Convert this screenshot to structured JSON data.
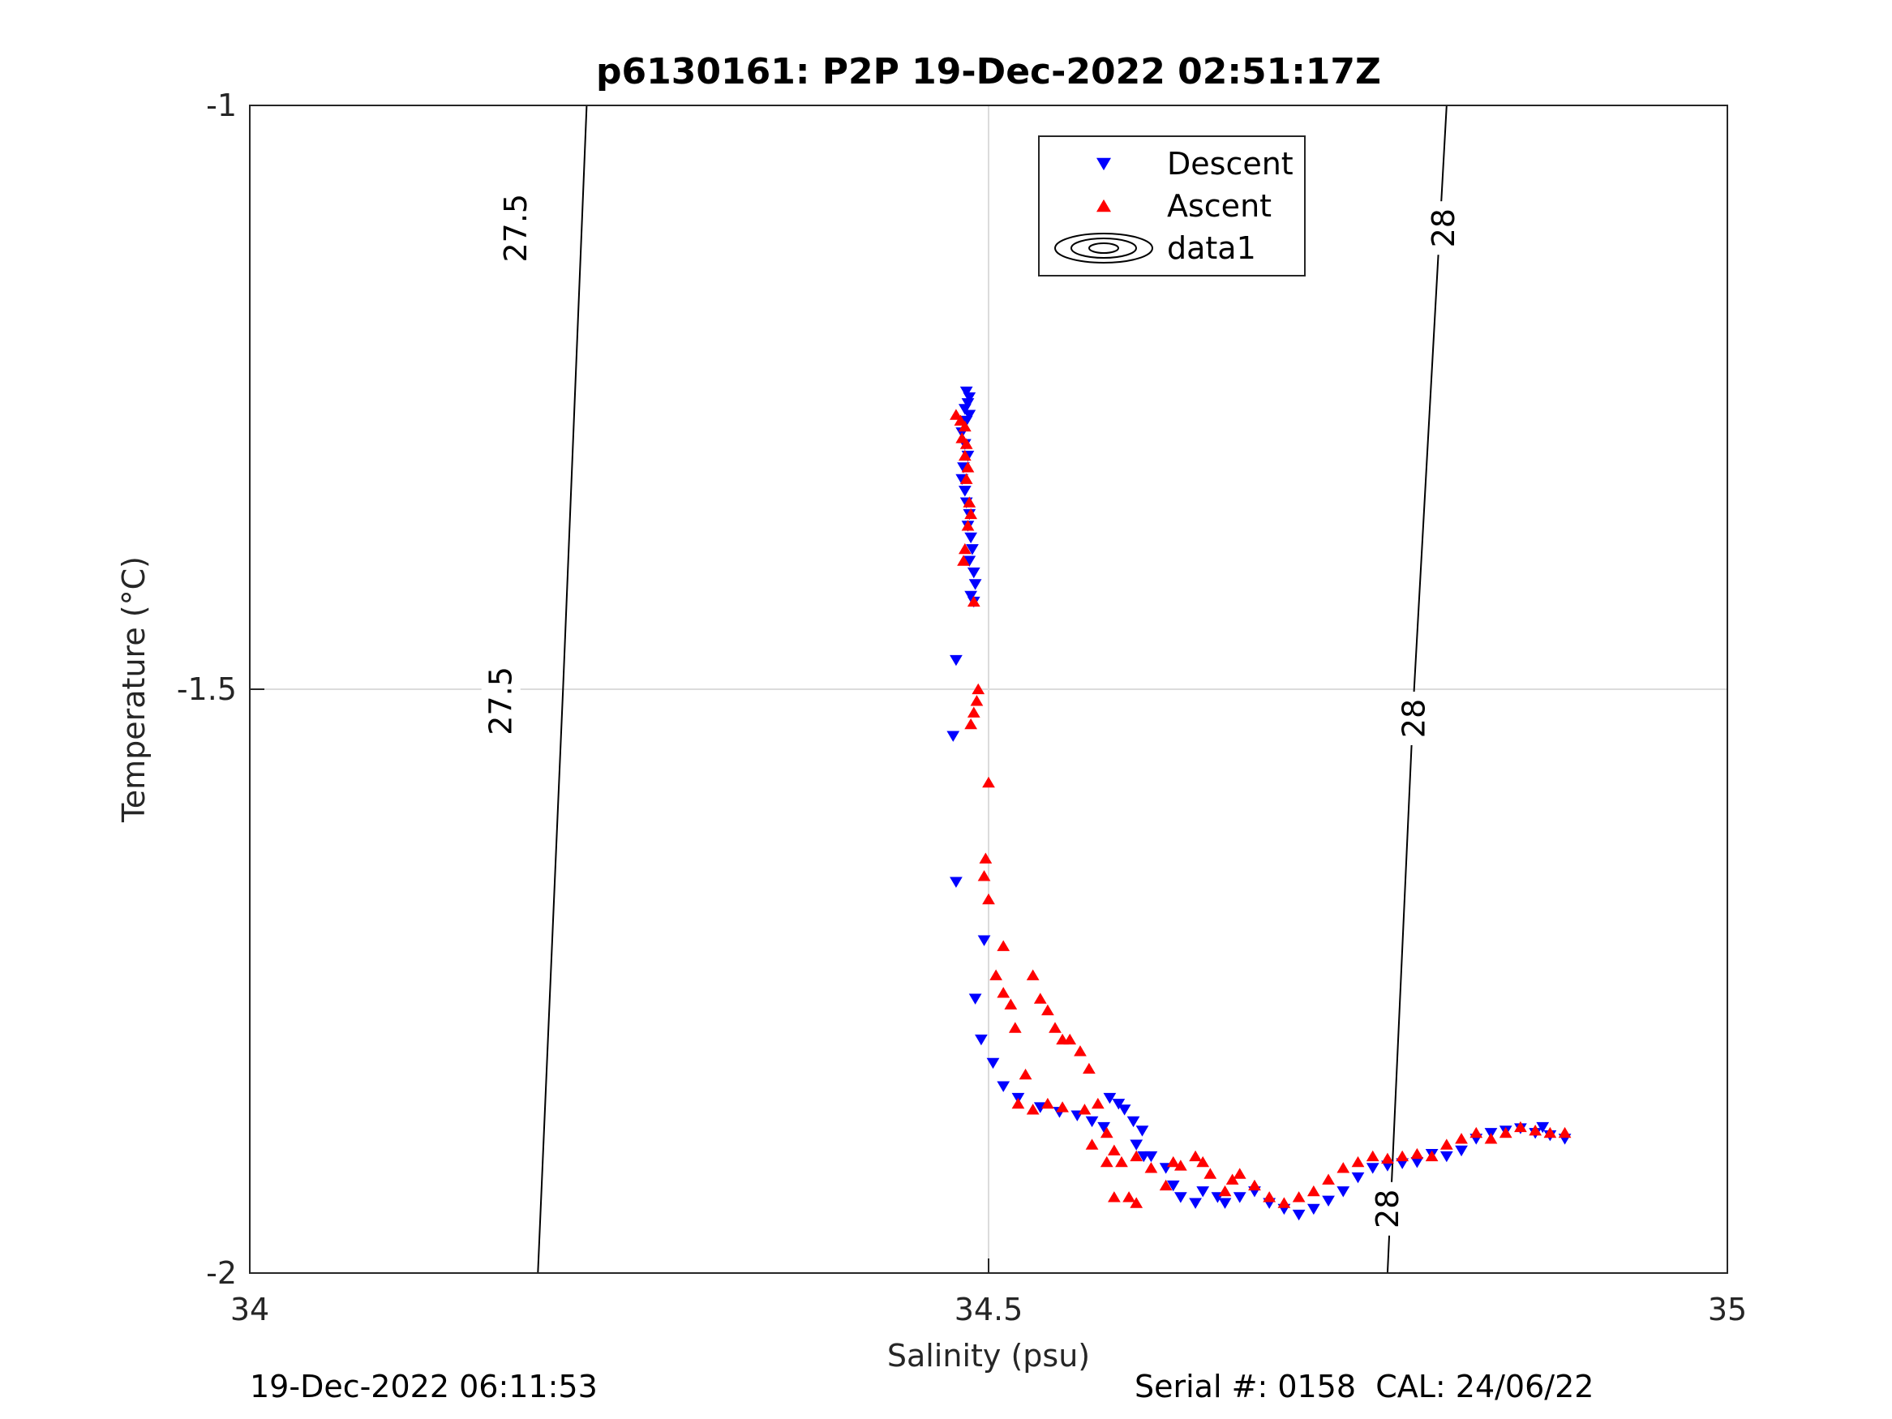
{
  "chart_data": {
    "type": "scatter",
    "title": "p6130161: P2P 19-Dec-2022 02:51:17Z",
    "xlabel": "Salinity (psu)",
    "ylabel": "Temperature (°C)",
    "xlim": [
      34,
      35
    ],
    "ylim": [
      -2,
      -1
    ],
    "xticks": [
      34,
      34.5,
      35
    ],
    "xtick_labels": [
      "34",
      "34.5",
      "35"
    ],
    "yticks": [
      -2,
      -1.5,
      -1
    ],
    "ytick_labels": [
      "-2",
      "-1.5",
      "-1"
    ],
    "grid": true,
    "legend_position": "top-center",
    "legend": [
      "Descent",
      "Ascent",
      "data1"
    ],
    "colors": {
      "descent": "#0000ff",
      "ascent": "#ff0000",
      "contour": "#000000",
      "grid": "#dcdcdc"
    },
    "series": [
      {
        "name": "Descent",
        "marker": "triangle-down",
        "points": [
          [
            34.485,
            -1.245
          ],
          [
            34.487,
            -1.25
          ],
          [
            34.486,
            -1.255
          ],
          [
            34.484,
            -1.26
          ],
          [
            34.487,
            -1.265
          ],
          [
            34.485,
            -1.27
          ],
          [
            34.482,
            -1.28
          ],
          [
            34.484,
            -1.29
          ],
          [
            34.486,
            -1.3
          ],
          [
            34.483,
            -1.31
          ],
          [
            34.482,
            -1.32
          ],
          [
            34.484,
            -1.33
          ],
          [
            34.485,
            -1.34
          ],
          [
            34.487,
            -1.35
          ],
          [
            34.486,
            -1.36
          ],
          [
            34.488,
            -1.37
          ],
          [
            34.489,
            -1.38
          ],
          [
            34.487,
            -1.39
          ],
          [
            34.49,
            -1.4
          ],
          [
            34.491,
            -1.41
          ],
          [
            34.488,
            -1.42
          ],
          [
            34.49,
            -1.425
          ],
          [
            34.478,
            -1.475
          ],
          [
            34.476,
            -1.54
          ],
          [
            34.478,
            -1.665
          ],
          [
            34.497,
            -1.715
          ],
          [
            34.491,
            -1.765
          ],
          [
            34.495,
            -1.8
          ],
          [
            34.503,
            -1.82
          ],
          [
            34.51,
            -1.84
          ],
          [
            34.52,
            -1.85
          ],
          [
            34.535,
            -1.858
          ],
          [
            34.548,
            -1.862
          ],
          [
            34.56,
            -1.865
          ],
          [
            34.57,
            -1.87
          ],
          [
            34.578,
            -1.875
          ],
          [
            34.582,
            -1.85
          ],
          [
            34.588,
            -1.855
          ],
          [
            34.592,
            -1.86
          ],
          [
            34.598,
            -1.87
          ],
          [
            34.604,
            -1.878
          ],
          [
            34.6,
            -1.89
          ],
          [
            34.61,
            -1.9
          ],
          [
            34.62,
            -1.91
          ],
          [
            34.605,
            -1.9
          ],
          [
            34.625,
            -1.925
          ],
          [
            34.63,
            -1.935
          ],
          [
            34.64,
            -1.94
          ],
          [
            34.645,
            -1.93
          ],
          [
            34.655,
            -1.935
          ],
          [
            34.66,
            -1.94
          ],
          [
            34.67,
            -1.935
          ],
          [
            34.68,
            -1.93
          ],
          [
            34.69,
            -1.94
          ],
          [
            34.7,
            -1.945
          ],
          [
            34.71,
            -1.95
          ],
          [
            34.72,
            -1.945
          ],
          [
            34.73,
            -1.938
          ],
          [
            34.74,
            -1.93
          ],
          [
            34.75,
            -1.918
          ],
          [
            34.76,
            -1.91
          ],
          [
            34.77,
            -1.908
          ],
          [
            34.78,
            -1.906
          ],
          [
            34.79,
            -1.905
          ],
          [
            34.8,
            -1.898
          ],
          [
            34.81,
            -1.9
          ],
          [
            34.82,
            -1.895
          ],
          [
            34.83,
            -1.885
          ],
          [
            34.84,
            -1.88
          ],
          [
            34.85,
            -1.878
          ],
          [
            34.86,
            -1.876
          ],
          [
            34.87,
            -1.88
          ],
          [
            34.88,
            -1.882
          ],
          [
            34.89,
            -1.885
          ],
          [
            34.875,
            -1.875
          ]
        ]
      },
      {
        "name": "Ascent",
        "marker": "triangle-up",
        "points": [
          [
            34.478,
            -1.265
          ],
          [
            34.481,
            -1.27
          ],
          [
            34.484,
            -1.275
          ],
          [
            34.482,
            -1.285
          ],
          [
            34.485,
            -1.29
          ],
          [
            34.484,
            -1.3
          ],
          [
            34.486,
            -1.31
          ],
          [
            34.485,
            -1.32
          ],
          [
            34.487,
            -1.34
          ],
          [
            34.488,
            -1.35
          ],
          [
            34.486,
            -1.36
          ],
          [
            34.484,
            -1.38
          ],
          [
            34.483,
            -1.39
          ],
          [
            34.49,
            -1.425
          ],
          [
            34.493,
            -1.5
          ],
          [
            34.49,
            -1.52
          ],
          [
            34.488,
            -1.53
          ],
          [
            34.492,
            -1.51
          ],
          [
            34.5,
            -1.58
          ],
          [
            34.498,
            -1.645
          ],
          [
            34.497,
            -1.66
          ],
          [
            34.5,
            -1.68
          ],
          [
            34.51,
            -1.72
          ],
          [
            34.505,
            -1.745
          ],
          [
            34.51,
            -1.76
          ],
          [
            34.515,
            -1.77
          ],
          [
            34.518,
            -1.79
          ],
          [
            34.525,
            -1.83
          ],
          [
            34.52,
            -1.855
          ],
          [
            34.53,
            -1.86
          ],
          [
            34.54,
            -1.855
          ],
          [
            34.55,
            -1.858
          ],
          [
            34.565,
            -1.86
          ],
          [
            34.53,
            -1.745
          ],
          [
            34.535,
            -1.765
          ],
          [
            34.54,
            -1.775
          ],
          [
            34.545,
            -1.79
          ],
          [
            34.55,
            -1.8
          ],
          [
            34.555,
            -1.8
          ],
          [
            34.562,
            -1.81
          ],
          [
            34.568,
            -1.825
          ],
          [
            34.574,
            -1.855
          ],
          [
            34.58,
            -1.88
          ],
          [
            34.585,
            -1.895
          ],
          [
            34.59,
            -1.905
          ],
          [
            34.57,
            -1.89
          ],
          [
            34.58,
            -1.905
          ],
          [
            34.585,
            -1.935
          ],
          [
            34.595,
            -1.935
          ],
          [
            34.6,
            -1.94
          ],
          [
            34.6,
            -1.9
          ],
          [
            34.61,
            -1.91
          ],
          [
            34.62,
            -1.925
          ],
          [
            34.625,
            -1.905
          ],
          [
            34.63,
            -1.908
          ],
          [
            34.64,
            -1.9
          ],
          [
            34.645,
            -1.905
          ],
          [
            34.65,
            -1.915
          ],
          [
            34.66,
            -1.93
          ],
          [
            34.665,
            -1.92
          ],
          [
            34.67,
            -1.915
          ],
          [
            34.68,
            -1.925
          ],
          [
            34.69,
            -1.935
          ],
          [
            34.7,
            -1.94
          ],
          [
            34.71,
            -1.935
          ],
          [
            34.72,
            -1.93
          ],
          [
            34.73,
            -1.92
          ],
          [
            34.74,
            -1.91
          ],
          [
            34.75,
            -1.905
          ],
          [
            34.76,
            -1.9
          ],
          [
            34.77,
            -1.902
          ],
          [
            34.78,
            -1.9
          ],
          [
            34.79,
            -1.898
          ],
          [
            34.8,
            -1.9
          ],
          [
            34.81,
            -1.89
          ],
          [
            34.82,
            -1.885
          ],
          [
            34.83,
            -1.88
          ],
          [
            34.84,
            -1.885
          ],
          [
            34.85,
            -1.88
          ],
          [
            34.86,
            -1.875
          ],
          [
            34.87,
            -1.878
          ],
          [
            34.88,
            -1.88
          ],
          [
            34.89,
            -1.88
          ]
        ]
      }
    ],
    "contours": [
      {
        "label": "27.5",
        "points": [
          [
            34.195,
            -2.0
          ],
          [
            34.212,
            -1.5
          ],
          [
            34.228,
            -1.0
          ]
        ],
        "label_positions": [
          [
            34.18,
            -1.105
          ],
          [
            34.17,
            -1.51
          ]
        ]
      },
      {
        "label": "28",
        "points": [
          [
            34.77,
            -2.0
          ],
          [
            34.788,
            -1.5
          ],
          [
            34.81,
            -1.0
          ]
        ],
        "label_positions": [
          [
            34.808,
            -1.105
          ],
          [
            34.788,
            -1.525
          ],
          [
            34.77,
            -1.945
          ]
        ]
      }
    ]
  },
  "footer": {
    "left": "19-Dec-2022 06:11:53",
    "right": "Serial #: 0158  CAL: 24/06/22"
  }
}
